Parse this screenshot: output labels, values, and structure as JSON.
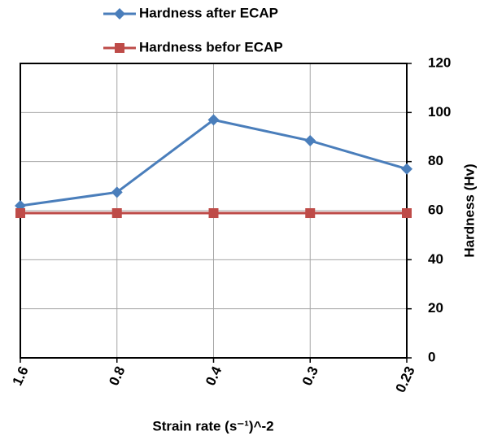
{
  "chart_data": {
    "type": "line",
    "x_label": "Strain rate (s⁻¹)^-2",
    "y_label": "Hardness (Hv)",
    "categories": [
      "1.6",
      "0.8",
      "0.4",
      "0.3",
      "0.23"
    ],
    "series": [
      {
        "name": "Hardness after ECAP",
        "color": "#4a7ebb",
        "marker": "diamond",
        "values": [
          62,
          67.5,
          97,
          88.5,
          77
        ]
      },
      {
        "name": "Hardness befor ECAP",
        "color": "#be4b48",
        "marker": "square",
        "values": [
          59,
          59,
          59,
          59,
          59
        ]
      }
    ],
    "ylim": [
      0,
      120
    ],
    "yticks": [
      0,
      20,
      40,
      60,
      80,
      100,
      120
    ],
    "grid": true,
    "y_axis_side": "right",
    "legend": "top"
  }
}
